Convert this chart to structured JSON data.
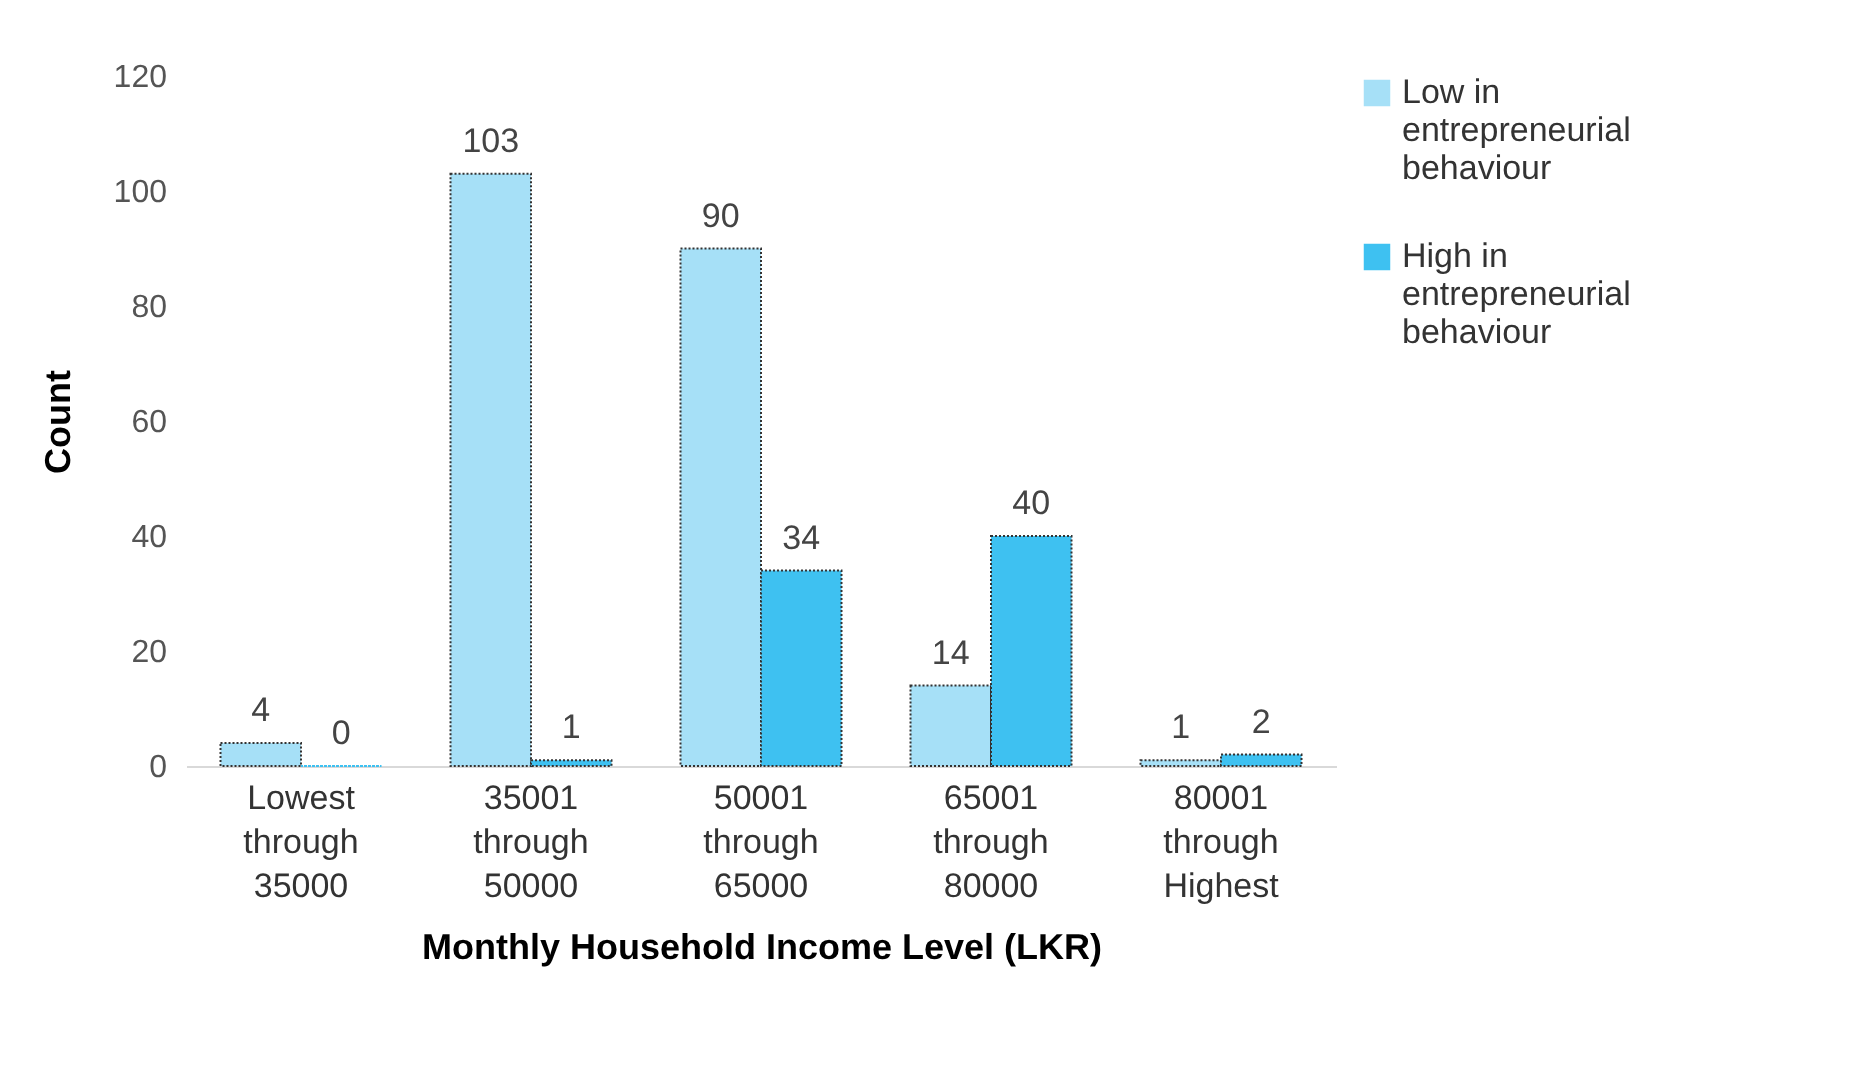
{
  "chart_data": {
    "type": "bar",
    "xlabel": "Monthly Household Income Level (LKR)",
    "ylabel": "Count",
    "categories": [
      "Lowest through 35000",
      "35001 through 50000",
      "50001 through 65000",
      "65001 through 80000",
      "80001 through Highest"
    ],
    "series": [
      {
        "name": "Low in entrepreneurial behaviour",
        "color": "#a6e0f7",
        "values": [
          4,
          103,
          90,
          14,
          1
        ]
      },
      {
        "name": "High in entrepreneurial behaviour",
        "color": "#3ec1f1",
        "values": [
          0,
          1,
          34,
          40,
          2
        ]
      }
    ],
    "ylim": [
      0,
      120
    ],
    "yticks": [
      0,
      20,
      40,
      60,
      80,
      100,
      120
    ],
    "grid": false,
    "legend": "right",
    "data_labels": true
  }
}
